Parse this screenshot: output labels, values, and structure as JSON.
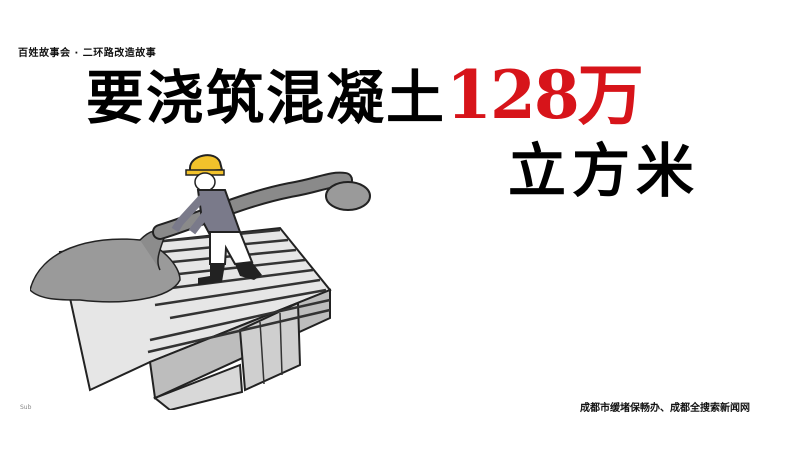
{
  "series_tag": "百姓故事会 · 二环路改造故事",
  "headline": {
    "text_before": "要浇筑混凝土",
    "number": "128万",
    "text_after": "立方米"
  },
  "credit": "成都市缓堵保畅办、成都全搜索新闻网",
  "page_mark": "Sub",
  "colors": {
    "accent": "#d7141a",
    "text": "#000000",
    "background": "#ffffff"
  }
}
